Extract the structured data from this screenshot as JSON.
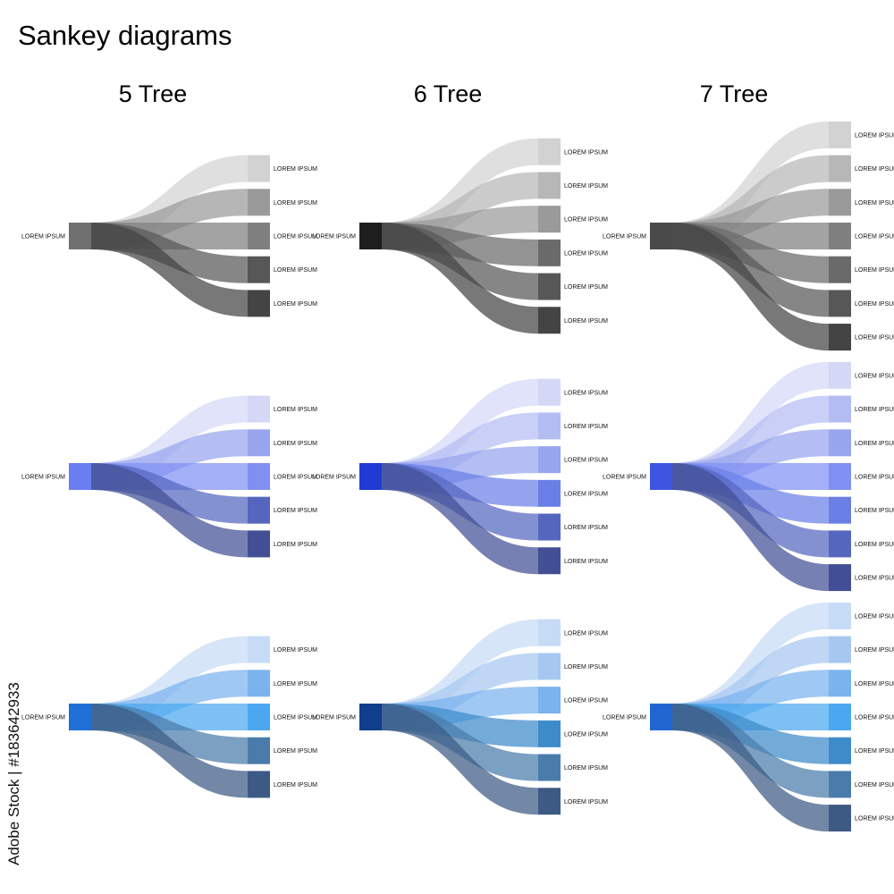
{
  "title": "Sankey diagrams",
  "columns": [
    {
      "label": "5 Tree",
      "branches": 5
    },
    {
      "label": "6 Tree",
      "branches": 6
    },
    {
      "label": "7 Tree",
      "branches": 7
    }
  ],
  "source_label": "LOREM IPSUM",
  "target_label": "LOREM IPSUM",
  "palettes": [
    {
      "name": "gray",
      "source_colors": [
        "#707070",
        "#1e1e1e",
        "#4a4a4a"
      ],
      "ramp": [
        "#d2d2d2",
        "#b7b7b7",
        "#9a9a9a",
        "#7f7f7f",
        "#6a6a6a",
        "#575757",
        "#444444"
      ]
    },
    {
      "name": "violet-blue",
      "source_colors": [
        "#6b7ef0",
        "#1f3bd4",
        "#4054e2"
      ],
      "ramp": [
        "#d4d8f6",
        "#b4bdf2",
        "#97a5ef",
        "#7f90f2",
        "#6a7fe6",
        "#5566bf",
        "#424f94"
      ]
    },
    {
      "name": "sky-blue",
      "source_colors": [
        "#1f6fd6",
        "#0f3f8c",
        "#2166d0"
      ],
      "ramp": [
        "#c6dbf5",
        "#a6c8f0",
        "#7ab3ee",
        "#4ba7f0",
        "#3d8bc9",
        "#4a7bab",
        "#3c5a84"
      ]
    }
  ],
  "watermark_id": "Adobe Stock | #183642933"
}
